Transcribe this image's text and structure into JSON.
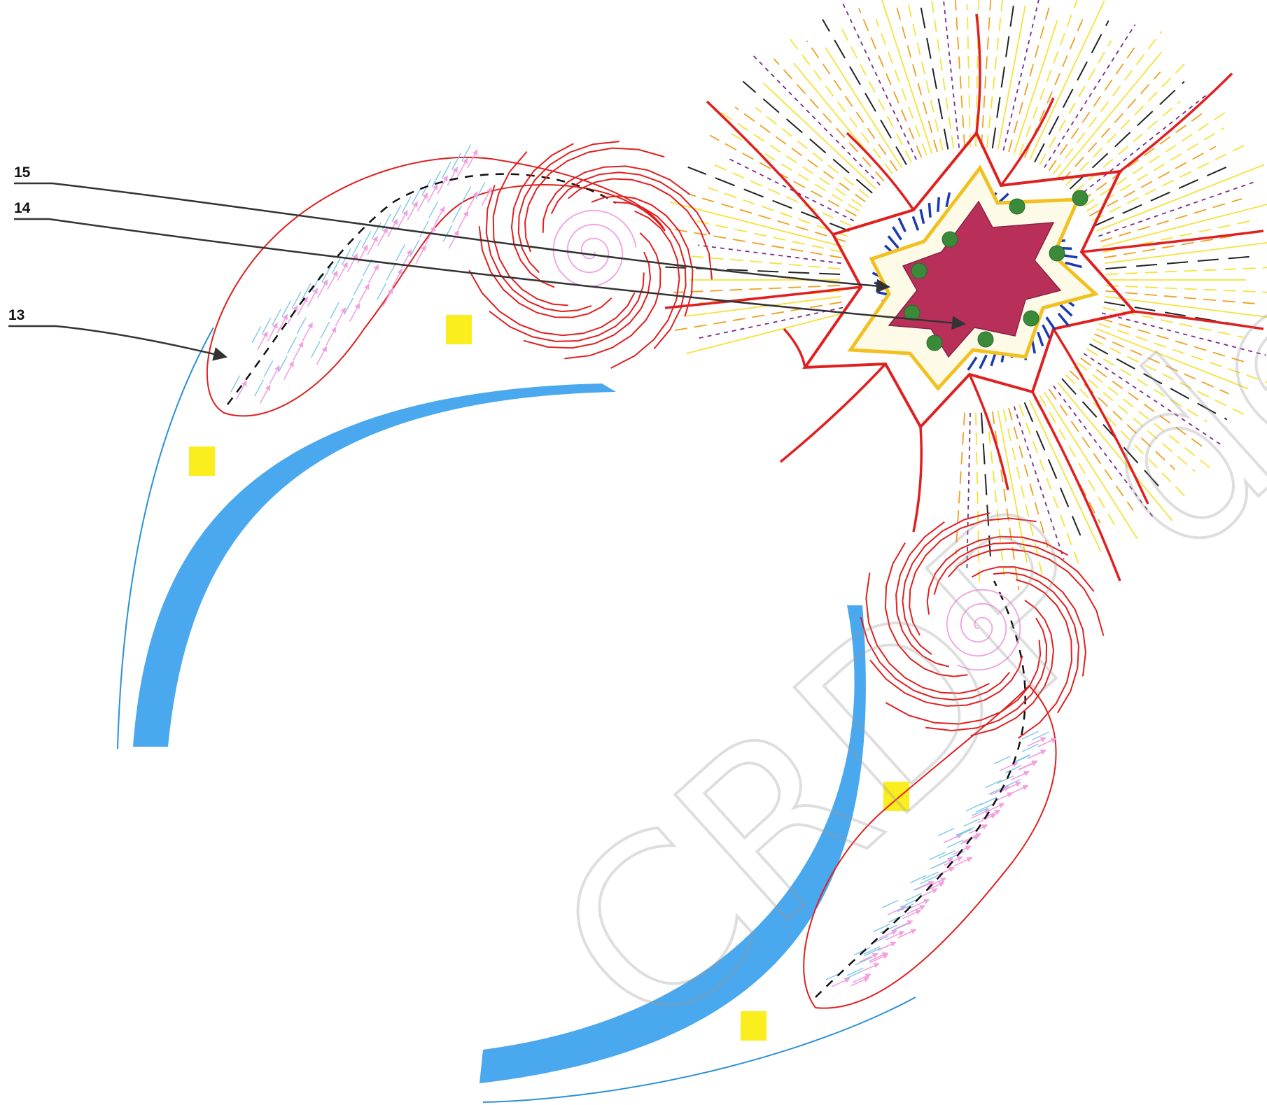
{
  "labels": [
    {
      "id": "15",
      "text": "15"
    },
    {
      "id": "14",
      "text": "14"
    },
    {
      "id": "13",
      "text": "13"
    }
  ],
  "watermark": {
    "text": "CRDP de Pa"
  },
  "colors": {
    "ray_yellow": "#f5e23a",
    "ray_orange": "#f0a020",
    "ray_black": "#222222",
    "ray_purple": "#7a2a8a",
    "membrane_red": "#e02020",
    "cell_core": "#b8305a",
    "granule_green": "#3a8a3a",
    "hair_blue": "#1a3ab0",
    "band_blue": "#4aa8ee",
    "thin_blue": "#2a90d8",
    "stream_pink": "#f2a0e0",
    "stream_cyan": "#7ec8e8",
    "yellow_square": "#fbee1e"
  }
}
